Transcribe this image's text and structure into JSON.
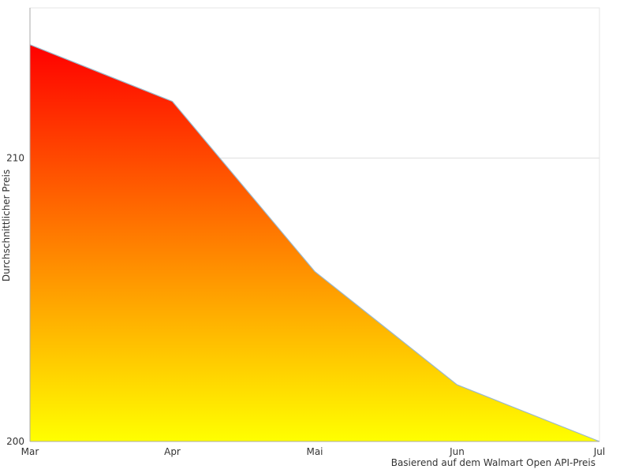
{
  "chart_data": {
    "type": "area",
    "categories": [
      "Mar",
      "Apr",
      "Mai",
      "Jun",
      "Jul"
    ],
    "values": [
      214,
      212,
      206,
      202,
      200
    ],
    "series_name": "Durchschnittlicher Preis",
    "title": "",
    "xlabel": "Basierend auf dem Walmart Open API-Preis",
    "ylabel": "Durchschnittlicher Preis",
    "y_ticks": [
      200,
      210
    ],
    "ylim": [
      200,
      215.3
    ],
    "grid": "horizontal",
    "legend": "none",
    "colors": {
      "gradient_top": "#ff0000",
      "gradient_bottom": "#ffff00",
      "line": "#9bb8cb",
      "grid": "#e0e0e0",
      "panel_border": "#e5e5e5",
      "axis": "#aaaaaa",
      "text": "#333333",
      "background": "#ffffff"
    }
  }
}
